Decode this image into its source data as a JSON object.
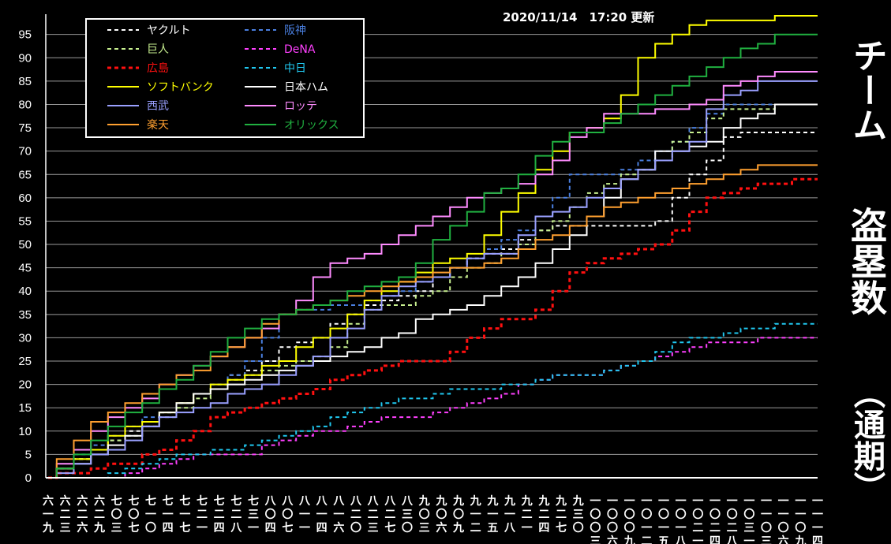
{
  "updated": "2020/11/14　17:20 更新",
  "side_title": {
    "line1": "チーム",
    "line2": "盗塁数",
    "line3": "（通期）"
  },
  "chart_data": {
    "type": "line",
    "title": "",
    "xlabel": "",
    "ylabel": "",
    "ylim": [
      0,
      99
    ],
    "yticks": [
      0,
      5,
      10,
      15,
      20,
      25,
      30,
      35,
      40,
      45,
      50,
      55,
      60,
      65,
      70,
      75,
      80,
      85,
      90,
      95
    ],
    "grid": true,
    "legend_position": "top-left",
    "x_labels": [
      "六一九",
      "六二三",
      "六二六",
      "六二九",
      "七〇三",
      "七〇七",
      "七一〇",
      "七一四",
      "七一七",
      "七二一",
      "七二四",
      "七二八",
      "七三一",
      "八〇四",
      "八〇七",
      "八一一",
      "八一四",
      "八一六",
      "八二〇",
      "八二三",
      "八二七",
      "八三〇",
      "九〇三",
      "九〇六",
      "九〇九",
      "九一二",
      "九一五",
      "九一八",
      "九二一",
      "九二四",
      "九二七",
      "九三〇",
      "一〇〇三",
      "一〇〇六",
      "一〇〇九",
      "一〇一二",
      "一〇一五",
      "一〇一八",
      "一〇二一",
      "一〇二四",
      "一〇二八",
      "一〇三一",
      "一一〇三",
      "一一〇六",
      "一一〇九",
      "一一一四"
    ],
    "series": [
      {
        "name": "ヤクルト",
        "color": "#ffffff",
        "dash": true,
        "values": [
          0,
          1,
          4,
          6,
          8,
          10,
          12,
          14,
          16,
          18,
          20,
          22,
          23,
          25,
          28,
          29,
          30,
          33,
          35,
          37,
          38,
          39,
          40,
          43,
          45,
          47,
          48,
          49,
          51,
          53,
          54,
          54,
          54,
          54,
          54,
          54,
          55,
          60,
          65,
          68,
          73,
          74,
          74,
          74,
          74,
          74
        ]
      },
      {
        "name": "阪神",
        "color": "#4a7fe0",
        "dash": true,
        "values": [
          0,
          2,
          5,
          7,
          9,
          11,
          13,
          14,
          16,
          18,
          20,
          22,
          25,
          30,
          35,
          36,
          36,
          37,
          37,
          38,
          39,
          40,
          42,
          43,
          45,
          47,
          49,
          51,
          53,
          56,
          60,
          65,
          65,
          65,
          66,
          68,
          70,
          72,
          75,
          78,
          80,
          80,
          80,
          80,
          80,
          80
        ]
      },
      {
        "name": "巨人",
        "color": "#c8f090",
        "dash": true,
        "values": [
          0,
          2,
          4,
          6,
          8,
          9,
          11,
          13,
          15,
          17,
          19,
          21,
          22,
          23,
          24,
          25,
          26,
          28,
          33,
          36,
          37,
          37,
          39,
          40,
          43,
          45,
          46,
          48,
          50,
          53,
          55,
          58,
          61,
          63,
          65,
          66,
          68,
          72,
          74,
          77,
          79,
          79,
          79,
          80,
          80,
          80
        ]
      },
      {
        "name": "DeNA",
        "color": "#ff40ff",
        "dash": true,
        "values": [
          0,
          0,
          0,
          0,
          0,
          1,
          2,
          3,
          4,
          5,
          5,
          5,
          5,
          7,
          8,
          9,
          10,
          10,
          11,
          12,
          13,
          13,
          13,
          14,
          15,
          16,
          17,
          18,
          20,
          21,
          22,
          22,
          22,
          23,
          24,
          25,
          26,
          27,
          28,
          29,
          29,
          29,
          30,
          30,
          30,
          30
        ]
      },
      {
        "name": "広島",
        "color": "#ff1010",
        "dash": true,
        "values": [
          0,
          1,
          1,
          2,
          3,
          3,
          5,
          6,
          8,
          10,
          13,
          14,
          15,
          16,
          17,
          18,
          19,
          21,
          22,
          23,
          24,
          25,
          25,
          25,
          27,
          30,
          32,
          34,
          34,
          36,
          40,
          44,
          46,
          47,
          48,
          49,
          50,
          53,
          57,
          60,
          61,
          62,
          63,
          63,
          64,
          64
        ]
      },
      {
        "name": "中日",
        "color": "#20c8f0",
        "dash": true,
        "values": [
          0,
          0,
          0,
          0,
          1,
          2,
          3,
          4,
          5,
          5,
          6,
          6,
          7,
          8,
          9,
          10,
          11,
          13,
          14,
          15,
          16,
          17,
          17,
          18,
          19,
          19,
          19,
          20,
          20,
          21,
          22,
          22,
          22,
          23,
          24,
          25,
          27,
          29,
          30,
          30,
          31,
          32,
          32,
          33,
          33,
          33
        ]
      },
      {
        "name": "ソフトバンク",
        "color": "#ffff00",
        "dash": false,
        "values": [
          0,
          2,
          4,
          6,
          9,
          11,
          12,
          14,
          16,
          18,
          20,
          21,
          22,
          24,
          25,
          28,
          30,
          32,
          35,
          38,
          40,
          42,
          44,
          46,
          47,
          48,
          52,
          57,
          61,
          66,
          70,
          74,
          75,
          77,
          82,
          90,
          93,
          95,
          97,
          98,
          98,
          98,
          98,
          99,
          99,
          99
        ]
      },
      {
        "name": "日本ハム",
        "color": "#ffffff",
        "dash": false,
        "values": [
          0,
          2,
          3,
          5,
          7,
          9,
          11,
          14,
          16,
          18,
          19,
          20,
          21,
          22,
          23,
          24,
          25,
          26,
          27,
          28,
          30,
          31,
          34,
          35,
          36,
          37,
          39,
          41,
          43,
          46,
          49,
          52,
          56,
          60,
          64,
          66,
          70,
          70,
          71,
          72,
          75,
          77,
          78,
          80,
          80,
          80
        ]
      },
      {
        "name": "西武",
        "color": "#9aa0ff",
        "dash": false,
        "values": [
          0,
          1,
          3,
          5,
          6,
          8,
          11,
          13,
          14,
          15,
          16,
          18,
          19,
          20,
          22,
          24,
          26,
          30,
          32,
          36,
          39,
          41,
          42,
          43,
          45,
          47,
          48,
          48,
          52,
          56,
          57,
          58,
          60,
          62,
          64,
          66,
          68,
          70,
          72,
          79,
          82,
          83,
          85,
          85,
          85,
          85
        ]
      },
      {
        "name": "ロッテ",
        "color": "#ff8cff",
        "dash": false,
        "values": [
          0,
          3,
          6,
          10,
          13,
          15,
          17,
          20,
          22,
          24,
          26,
          28,
          30,
          32,
          35,
          38,
          43,
          46,
          47,
          48,
          50,
          52,
          54,
          56,
          58,
          60,
          61,
          62,
          63,
          65,
          68,
          73,
          75,
          78,
          78,
          78,
          79,
          79,
          80,
          81,
          84,
          85,
          86,
          87,
          87,
          87
        ]
      },
      {
        "name": "楽天",
        "color": "#ffa030",
        "dash": false,
        "values": [
          0,
          4,
          8,
          12,
          14,
          16,
          18,
          20,
          22,
          23,
          26,
          28,
          30,
          33,
          35,
          36,
          37,
          38,
          39,
          40,
          41,
          42,
          43,
          44,
          45,
          45,
          46,
          47,
          49,
          51,
          52,
          54,
          56,
          58,
          59,
          60,
          61,
          62,
          63,
          64,
          65,
          66,
          67,
          67,
          67,
          67
        ]
      },
      {
        "name": "オリックス",
        "color": "#20b040",
        "dash": false,
        "values": [
          0,
          2,
          5,
          8,
          11,
          14,
          16,
          19,
          21,
          24,
          27,
          30,
          32,
          34,
          35,
          36,
          37,
          38,
          40,
          41,
          42,
          43,
          46,
          51,
          54,
          57,
          61,
          62,
          65,
          69,
          72,
          74,
          74,
          76,
          78,
          80,
          82,
          84,
          86,
          88,
          90,
          92,
          93,
          95,
          95,
          95
        ]
      }
    ]
  }
}
